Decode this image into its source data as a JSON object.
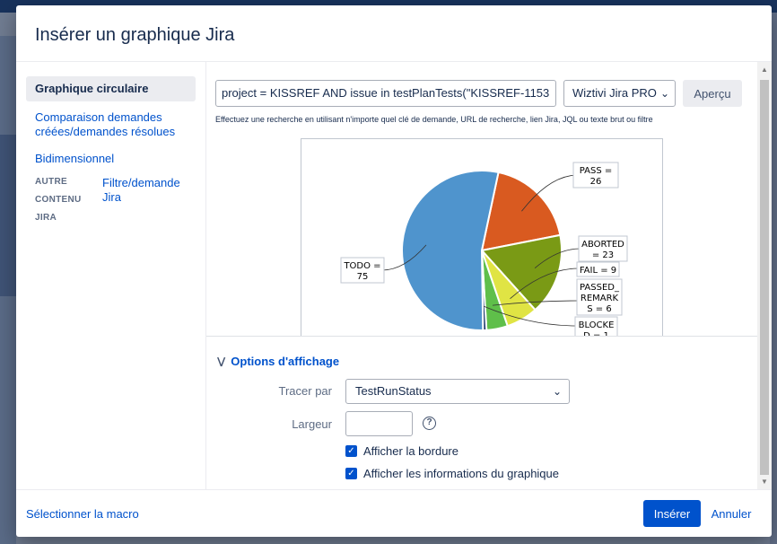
{
  "dialog": {
    "title": "Insérer un graphique Jira"
  },
  "sidebar": {
    "items": [
      {
        "label": "Graphique circulaire"
      },
      {
        "label": "Comparaison demandes créées/demandes résolues"
      },
      {
        "label": "Bidimensionnel"
      }
    ],
    "group": {
      "label": "AUTRE CONTENU JIRA",
      "link": "Filtre/demande Jira"
    }
  },
  "search": {
    "query": "project = KISSREF AND issue in testPlanTests(\"KISSREF-1153",
    "server": "Wiztivi Jira PRO",
    "preview_label": "Aperçu",
    "hint": "Effectuez une recherche en utilisant n'importe quel clé de demande, URL de recherche, lien Jira, JQL ou texte brut ou filtre"
  },
  "chart_data": {
    "type": "pie",
    "title": "",
    "slices": [
      {
        "label": "PASS = 26",
        "value": 26,
        "color": "#d95a20"
      },
      {
        "label": "ABORTED = 23",
        "value": 23,
        "color": "#7a9a15"
      },
      {
        "label": "FAIL = 9",
        "value": 9,
        "color": "#e0e444"
      },
      {
        "label": "PASSED_REMARKS = 6",
        "value": 6,
        "color": "#5fbf4a"
      },
      {
        "label": "BLOCKED = 1",
        "value": 1,
        "color": "#1e3a6e"
      },
      {
        "label": "TODO = 75",
        "value": 75,
        "color": "#4f94cd"
      }
    ],
    "label_lines": [
      [
        "PASS =",
        "26"
      ],
      [
        "ABORTED",
        "= 23"
      ],
      [
        "FAIL = 9"
      ],
      [
        "PASSED_",
        "REMARK",
        "S = 6"
      ],
      [
        "BLOCKE",
        "D = 1"
      ],
      [
        "TODO =",
        "75"
      ]
    ]
  },
  "options": {
    "toggle_label": "Options d'affichage",
    "plot_by_label": "Tracer par",
    "plot_by_value": "TestRunStatus",
    "width_label": "Largeur",
    "width_value": "",
    "show_border_label": "Afficher la bordure",
    "show_info_label": "Afficher les informations du graphique"
  },
  "footer": {
    "select_macro": "Sélectionner la macro",
    "insert": "Insérer",
    "cancel": "Annuler"
  }
}
